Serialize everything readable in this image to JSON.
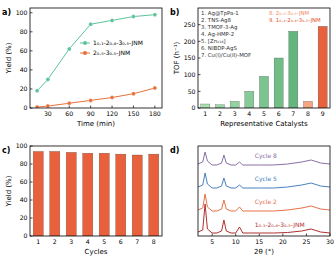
{
  "chart_data": [
    {
      "type": "line",
      "title": "a)",
      "x_label": "Time (min)",
      "y_label": "Yield (%)",
      "x": [
        15,
        30,
        60,
        90,
        120,
        150,
        180
      ],
      "series": [
        {
          "name": "1₀.₁-2₀.₄-3₀.₅-JNM",
          "color": "#5cc49a",
          "marker": "circle",
          "values": [
            18,
            30,
            62,
            88,
            92,
            96,
            98
          ]
        },
        {
          "name": "2₀.₅-3₀.₅-JNM",
          "color": "#e8703a",
          "marker": "circle",
          "values": [
            1,
            2,
            5,
            8,
            11,
            15,
            21
          ]
        }
      ],
      "xlim": [
        5,
        190
      ],
      "xticks": [
        30,
        60,
        90,
        120,
        150,
        180
      ],
      "ylim": [
        0,
        105
      ],
      "yticks": [
        0,
        20,
        40,
        60,
        80,
        100
      ],
      "legend": "center right"
    },
    {
      "type": "bar",
      "title": "b)",
      "x_label": "Representative Catalysts",
      "y_label": "TOF (h⁻¹)",
      "categories": [
        "1",
        "2",
        "3",
        "4",
        "5",
        "6",
        "7",
        "8",
        "9"
      ],
      "values": [
        12,
        10,
        20,
        50,
        95,
        150,
        230,
        20,
        245
      ],
      "colors": [
        "#a8e0b0",
        "#9dd9a8",
        "#92d2a0",
        "#86cb97",
        "#7bc48f",
        "#70bd86",
        "#65b67e",
        "#f4a582",
        "#e8603c"
      ],
      "ylim": [
        0,
        300
      ],
      "yticks": [
        0,
        50,
        100,
        150,
        200,
        250
      ],
      "annotations": [
        {
          "text": "1. Ag@TpPa-1",
          "color": "#333333"
        },
        {
          "text": "2. TNS-Ag8",
          "color": "#333333"
        },
        {
          "text": "3. TMOF-3-Ag",
          "color": "#333333"
        },
        {
          "text": "4. Ag-HMP-2",
          "color": "#333333"
        },
        {
          "text": "5. [Zn₁₁₆]",
          "color": "#333333"
        },
        {
          "text": "6. NIBDP-AgS",
          "color": "#333333"
        },
        {
          "text": "7. Cu(I)/Cu(II)-MOF",
          "color": "#333333"
        },
        {
          "text": "8. 2₀.₅-3₀.₅-JNM",
          "color": "#f08a60"
        },
        {
          "text": "9. 1₀.₁-2₀.₄-3₀.₅-JNM",
          "color": "#e0502a"
        }
      ]
    },
    {
      "type": "bar",
      "title": "c)",
      "x_label": "Cycles",
      "y_label": "Yield (%)",
      "categories": [
        "1",
        "2",
        "3",
        "4",
        "5",
        "6",
        "7",
        "8"
      ],
      "values": [
        94,
        94,
        93,
        92,
        92,
        91,
        90,
        91
      ],
      "color": "#e8603c",
      "ylim": [
        0,
        100
      ],
      "yticks": [
        0,
        20,
        40,
        60,
        80,
        100
      ]
    },
    {
      "type": "line",
      "title": "d)",
      "x_label": "2θ (°)",
      "x": [
        2,
        3,
        3.5,
        4,
        5,
        6,
        7,
        7.5,
        8,
        9,
        10,
        10.8,
        11.5,
        13,
        15,
        18,
        21,
        24,
        26,
        28,
        30
      ],
      "series": [
        {
          "name": "1₀.₁-2₀.₄-3₀.₅-JNM",
          "color": "#b03030",
          "values": [
            0.4,
            0.6,
            3.2,
            0.7,
            0.3,
            0.3,
            0.5,
            1.6,
            0.5,
            0.3,
            0.3,
            0.9,
            0.3,
            0.3,
            0.3,
            0.3,
            0.35,
            0.5,
            0.7,
            0.4,
            0.3
          ]
        },
        {
          "name": "Cycle 2",
          "color": "#e8704a",
          "values": [
            2.6,
            2.8,
            4.2,
            2.9,
            2.5,
            2.5,
            2.7,
            3.6,
            2.7,
            2.5,
            2.5,
            2.9,
            2.5,
            2.5,
            2.5,
            2.5,
            2.6,
            2.8,
            3.0,
            2.7,
            2.6
          ]
        },
        {
          "name": "Cycle 5",
          "color": "#4a7fc0",
          "values": [
            4.9,
            5.1,
            6.3,
            5.2,
            4.8,
            4.8,
            5.0,
            5.8,
            5.0,
            4.8,
            4.8,
            5.1,
            4.8,
            4.8,
            4.8,
            4.8,
            4.9,
            5.1,
            5.3,
            5.0,
            4.9
          ]
        },
        {
          "name": "Cycle 8",
          "color": "#8a6fa8",
          "values": [
            7.2,
            7.4,
            8.4,
            7.5,
            7.1,
            7.1,
            7.3,
            8.1,
            7.3,
            7.1,
            7.1,
            7.4,
            7.1,
            7.1,
            7.1,
            7.1,
            7.2,
            7.4,
            7.6,
            7.3,
            7.2
          ]
        }
      ],
      "xlim": [
        2,
        30
      ],
      "xticks": [
        5,
        10,
        15,
        20,
        25,
        30
      ],
      "ylim": [
        0,
        9
      ],
      "tick_labels": "x",
      "legend": "inline"
    }
  ]
}
